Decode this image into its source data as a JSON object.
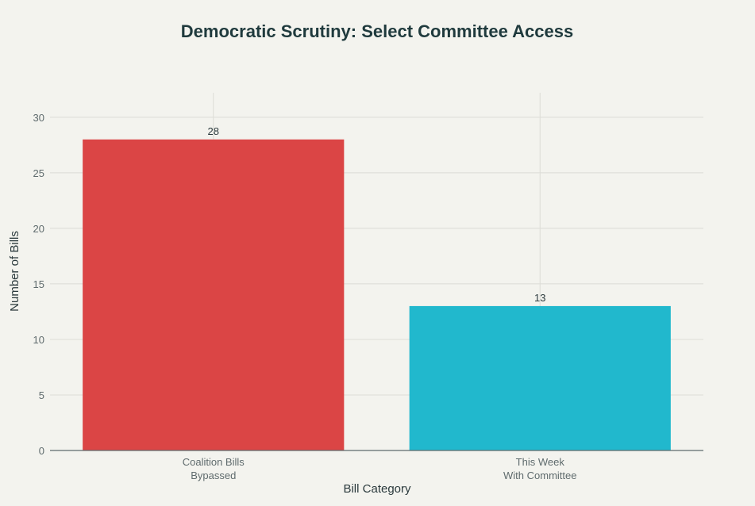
{
  "chart_data": {
    "type": "bar",
    "title": "Democratic Scrutiny: Select Committee Access",
    "xlabel": "Bill Category",
    "ylabel": "Number of Bills",
    "categories": [
      [
        "Coalition Bills",
        "Bypassed"
      ],
      [
        "This Week",
        "With Committee"
      ]
    ],
    "values": [
      28,
      13
    ],
    "data_labels": [
      "28",
      "13"
    ],
    "ylim": [
      0,
      32.2
    ],
    "yticks": [
      0,
      5,
      10,
      15,
      20,
      25,
      30
    ],
    "ytick_labels": [
      "0",
      "5",
      "10",
      "15",
      "20",
      "25",
      "30"
    ],
    "bar_colors": [
      "#db4545",
      "#21b8cd"
    ],
    "grid": true,
    "legend": "none"
  },
  "colors": {
    "background": "#f3f3ee",
    "title": "#1f3a3d",
    "axis_text": "#5f6b6d",
    "grid": "#dcdcd6",
    "zero_line": "#5f6b6d"
  }
}
